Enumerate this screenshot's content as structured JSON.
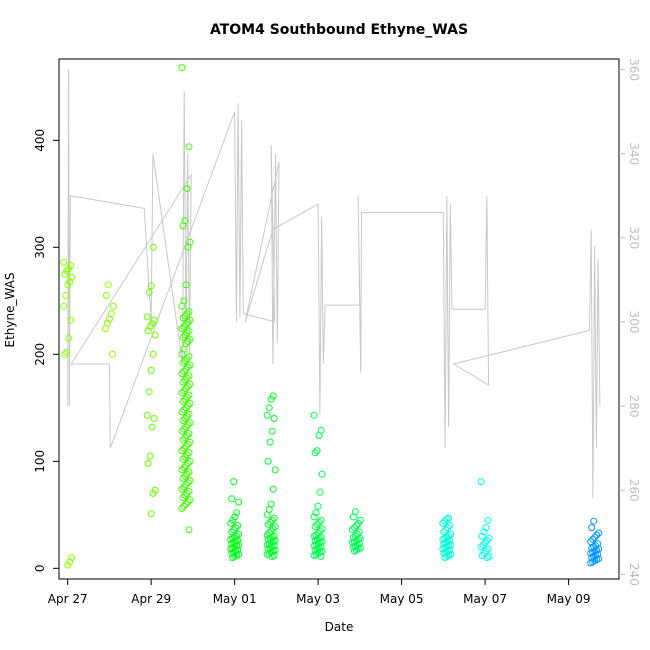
{
  "chart_data": {
    "type": "scatter",
    "title": "ATOM4 Southbound Ethyne_WAS",
    "xlabel": "Date",
    "ylabel": "Ethyne_WAS",
    "x_unit": "days",
    "xlim": [
      "2018-04-26T19:00",
      "2018-05-10T05:00"
    ],
    "ylim": [
      -10,
      476
    ],
    "y_ticks": [
      0,
      100,
      200,
      300,
      400
    ],
    "x_ticks": [
      {
        "date": "2018-04-27",
        "label": "Apr 27"
      },
      {
        "date": "2018-04-29",
        "label": "Apr 29"
      },
      {
        "date": "2018-05-01",
        "label": "May 01"
      },
      {
        "date": "2018-05-03",
        "label": "May 03"
      },
      {
        "date": "2018-05-05",
        "label": "May 05"
      },
      {
        "date": "2018-05-07",
        "label": "May 07"
      },
      {
        "date": "2018-05-09",
        "label": "May 09"
      }
    ],
    "right_axis": {
      "ylim": [
        238.9,
        362.5
      ],
      "ticks": [
        240,
        260,
        280,
        300,
        320,
        340,
        360
      ],
      "color": "#bdbdbd"
    },
    "scatter_series": [
      {
        "x": "2018-04-27T00:00",
        "color": "#8cff00",
        "y": [
          286,
          283,
          280,
          278,
          275,
          272,
          268,
          265,
          255,
          245,
          232,
          215,
          202,
          200,
          10,
          6,
          3
        ]
      },
      {
        "x": "2018-04-28T00:00",
        "color": "#8cff00",
        "y": [
          265,
          255,
          245,
          238,
          233,
          229,
          224,
          200
        ]
      },
      {
        "x": "2018-04-29T00:00",
        "color": "#66ff00",
        "y": [
          300,
          264,
          258,
          235,
          232,
          229,
          226,
          222,
          218,
          200,
          185,
          165,
          143,
          140,
          132,
          105,
          98,
          73,
          70,
          51
        ]
      },
      {
        "x": "2018-04-29T20:00",
        "color": "#3dff00",
        "y": [
          468,
          394,
          355,
          325,
          320,
          305,
          300,
          265,
          250,
          245,
          240,
          238,
          236,
          234,
          232,
          230,
          228,
          226,
          224,
          222,
          220,
          218,
          216,
          214,
          212,
          210,
          205,
          200,
          198,
          196,
          194,
          192,
          190,
          188,
          186,
          184,
          182,
          180,
          178,
          176,
          174,
          172,
          170,
          168,
          166,
          164,
          162,
          160,
          158,
          156,
          154,
          152,
          150,
          148,
          146,
          144,
          142,
          140,
          138,
          136,
          134,
          132,
          130,
          128,
          126,
          124,
          122,
          120,
          118,
          116,
          114,
          112,
          110,
          108,
          106,
          104,
          102,
          100,
          98,
          96,
          94,
          92,
          90,
          88,
          86,
          84,
          82,
          80,
          78,
          76,
          74,
          72,
          70,
          68,
          66,
          64,
          62,
          60,
          58,
          56,
          36
        ]
      },
      {
        "x": "2018-05-01T00:00",
        "color": "#00ff1a",
        "y": [
          81,
          65,
          62,
          52,
          48,
          45,
          42,
          40,
          38,
          36,
          34,
          32,
          30,
          29,
          28,
          27,
          26,
          25,
          24,
          23,
          22,
          21,
          20,
          19,
          18,
          17,
          16,
          15,
          14,
          13,
          12,
          11,
          10
        ]
      },
      {
        "x": "2018-05-01T21:00",
        "color": "#00ff2b",
        "y": [
          161,
          158,
          150,
          143,
          140,
          128,
          118,
          100,
          92,
          74,
          60,
          55,
          50,
          47,
          45,
          43,
          41,
          39,
          37,
          35,
          33,
          31,
          30,
          29,
          28,
          27,
          26,
          25,
          24,
          23,
          22,
          21,
          20,
          19,
          18,
          17,
          16,
          15,
          14,
          13,
          12,
          11
        ]
      },
      {
        "x": "2018-05-03T00:00",
        "color": "#00ff4d",
        "y": [
          143,
          129,
          124,
          110,
          108,
          88,
          71,
          58,
          52,
          48,
          45,
          43,
          41,
          39,
          37,
          35,
          33,
          31,
          30,
          29,
          28,
          27,
          26,
          25,
          24,
          23,
          22,
          21,
          20,
          19,
          18,
          17,
          16,
          15,
          14,
          13,
          12,
          11
        ]
      },
      {
        "x": "2018-05-03T22:00",
        "color": "#00ff55",
        "y": [
          53,
          48,
          45,
          42,
          40,
          38,
          36,
          34,
          32,
          30,
          29,
          28,
          27,
          26,
          25,
          24,
          23,
          22,
          21,
          20,
          19,
          18,
          17,
          16
        ]
      },
      {
        "x": "2018-05-06T02:00",
        "color": "#00ffd5",
        "y": [
          47,
          46,
          44,
          42,
          40,
          38,
          36,
          34,
          32,
          30,
          29,
          28,
          27,
          26,
          25,
          24,
          23,
          22,
          21,
          20,
          19,
          18,
          17,
          16,
          15,
          14,
          13,
          12,
          11,
          10
        ]
      },
      {
        "x": "2018-05-07T00:00",
        "color": "#00ffee",
        "y": [
          81,
          45,
          38,
          34,
          30,
          28,
          26,
          24,
          22,
          20,
          18,
          16,
          14,
          12,
          11,
          10
        ]
      },
      {
        "x": "2018-05-09T15:00",
        "color": "#0099ff",
        "y": [
          44,
          38,
          33,
          31,
          29,
          27,
          25,
          23,
          21,
          20,
          19,
          18,
          17,
          16,
          15,
          14,
          13,
          12,
          11,
          10,
          9,
          8,
          7,
          6,
          5
        ]
      }
    ],
    "line_series": {
      "color": "#c8c8c8",
      "axis": "right",
      "points": [
        [
          "2018-04-27T00:00",
          280
        ],
        [
          "2018-04-27T00:30",
          360
        ],
        [
          "2018-04-27T01:00",
          280
        ],
        [
          "2018-04-27T01:30",
          330
        ],
        [
          "2018-04-28T20:00",
          327
        ],
        [
          "2018-04-29T00:00",
          300
        ],
        [
          "2018-04-29T01:00",
          340
        ],
        [
          "2018-04-29T18:00",
          290
        ],
        [
          "2018-04-29T19:00",
          355
        ],
        [
          "2018-04-29T20:00",
          295
        ],
        [
          "2018-04-29T21:00",
          340
        ],
        [
          "2018-04-29T22:00",
          292
        ],
        [
          "2018-04-29T23:00",
          335
        ],
        [
          "2018-04-27T02:00",
          290
        ],
        [
          "2018-04-28T00:00",
          290
        ],
        [
          "2018-04-28T00:30",
          270
        ],
        [
          "2018-05-01T00:00",
          350
        ],
        [
          "2018-05-01T01:00",
          300
        ],
        [
          "2018-05-01T02:00",
          352
        ],
        [
          "2018-05-01T03:00",
          301
        ],
        [
          "2018-05-01T04:00",
          348
        ],
        [
          "2018-05-01T05:00",
          302
        ],
        [
          "2018-05-01T23:00",
          300
        ],
        [
          "2018-05-01T21:00",
          342
        ],
        [
          "2018-05-01T22:00",
          290
        ],
        [
          "2018-05-01T23:30",
          340
        ],
        [
          "2018-05-02T00:30",
          295
        ],
        [
          "2018-05-02T01:30",
          338
        ],
        [
          "2018-05-01T06:00",
          300
        ],
        [
          "2018-05-01T22:00",
          322
        ],
        [
          "2018-05-03T00:00",
          328
        ],
        [
          "2018-05-03T01:00",
          278
        ],
        [
          "2018-05-03T02:00",
          325
        ],
        [
          "2018-05-03T03:00",
          290
        ],
        [
          "2018-05-03T04:00",
          304
        ],
        [
          "2018-05-04T00:00",
          304
        ],
        [
          "2018-05-03T23:00",
          330
        ],
        [
          "2018-05-04T00:30",
          288
        ],
        [
          "2018-05-04T01:00",
          326
        ],
        [
          "2018-05-06T00:00",
          326
        ],
        [
          "2018-05-06T01:00",
          270
        ],
        [
          "2018-05-06T02:00",
          330
        ],
        [
          "2018-05-06T03:00",
          275
        ],
        [
          "2018-05-06T04:00",
          328
        ],
        [
          "2018-05-06T05:00",
          303
        ],
        [
          "2018-05-07T00:00",
          303
        ],
        [
          "2018-05-07T01:00",
          330
        ],
        [
          "2018-05-07T02:00",
          285
        ],
        [
          "2018-05-06T06:00",
          290
        ],
        [
          "2018-05-09T12:00",
          298
        ],
        [
          "2018-05-09T13:00",
          322
        ],
        [
          "2018-05-09T14:00",
          258
        ],
        [
          "2018-05-09T15:00",
          318
        ],
        [
          "2018-05-09T16:00",
          270
        ],
        [
          "2018-05-09T17:00",
          315
        ],
        [
          "2018-05-09T18:00",
          280
        ]
      ]
    }
  }
}
